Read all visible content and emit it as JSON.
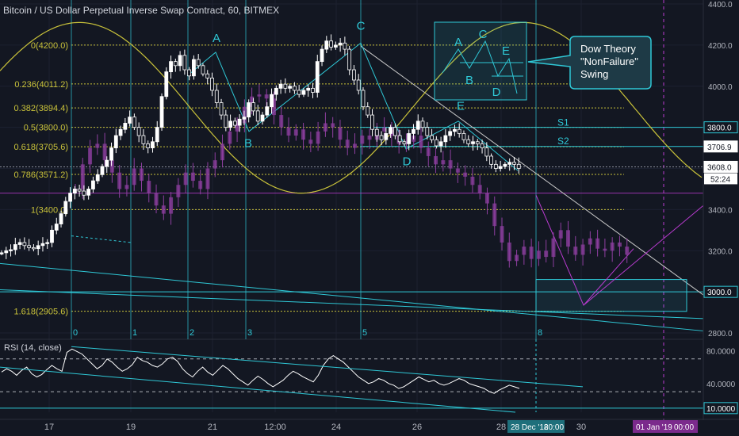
{
  "header": {
    "title": "Bitcoin / US Dollar Perpetual Inverse Swap Contract, 60, BITMEX"
  },
  "colors": {
    "background": "#131722",
    "candle": "#ffffff",
    "ghost_candle": "#8e3fa0",
    "fib": "#c9c23a",
    "cyan": "#2fc8d6",
    "purple": "#b93bd0",
    "trend": "#c8c8c8",
    "wave": "#2fc8d6",
    "grid": "#1c2130",
    "axis_text": "#b2b5be"
  },
  "chart_data": [
    {
      "type": "line",
      "title": "Bitcoin / US Dollar Perpetual Inverse Swap Contract, 60, BITMEX",
      "ylim": [
        2750,
        4400
      ],
      "y_ticks": [
        2800,
        3000,
        3200,
        3400,
        3600,
        3800,
        4000,
        4200,
        4400
      ],
      "y_tick_labels": [
        "2800.0",
        "3000.0",
        "3200.0",
        "3400.0",
        "3600.0",
        "3800.0",
        "4000.0",
        "4200.0",
        "4400.0"
      ],
      "x_tick_labels": [
        "17",
        "19",
        "21",
        "12:00",
        "24",
        "26",
        "28",
        "30"
      ],
      "price_badges": [
        {
          "value": 3800,
          "label": "3800.0",
          "style": "outline"
        },
        {
          "value": 3706.9,
          "label": "3706.9",
          "style": "white"
        },
        {
          "value": 3608.0,
          "label": "3608.0",
          "style": "white"
        },
        {
          "value": 3000,
          "label": "3000.0",
          "style": "outline"
        }
      ],
      "countdown": "52:24",
      "fib_levels": [
        {
          "ratio_label": "0(4200.0)",
          "value": 4200.0
        },
        {
          "ratio_label": "0.236(4011.2)",
          "value": 4011.2
        },
        {
          "ratio_label": "0.382(3894.4)",
          "value": 3894.4
        },
        {
          "ratio_label": "0.5(3800.0)",
          "value": 3800.0
        },
        {
          "ratio_label": "0.618(3705.6)",
          "value": 3705.6
        },
        {
          "ratio_label": "0.786(3571.2)",
          "value": 3571.2
        },
        {
          "ratio_label": "1(3400.0)",
          "value": 3400.0
        },
        {
          "ratio_label": "1.618(2905.6)",
          "value": 2905.6
        }
      ],
      "series": [
        {
          "name": "",
          "values": [
            3190,
            3200,
            3205,
            3230,
            3240,
            3225,
            3215,
            3210,
            3225,
            3235,
            3240,
            3300,
            3330,
            3380,
            3440,
            3480,
            3500,
            3490,
            3470,
            3500,
            3540,
            3570,
            3610,
            3640,
            3700,
            3760,
            3790,
            3820,
            3850,
            3800,
            3760,
            3720,
            3700,
            3730,
            3800,
            3950,
            4070,
            4120,
            4100,
            4150,
            4080,
            4050,
            4130,
            4100,
            4060,
            4040,
            3980,
            3920,
            3860,
            3800,
            3830,
            3810,
            3840,
            3850,
            3920,
            3880,
            3830,
            3860,
            3900,
            3960,
            3990,
            4010,
            3990,
            4000,
            3980,
            3960,
            3980,
            3990,
            3970,
            4120,
            4180,
            4220,
            4190,
            4200,
            4210,
            4180,
            4080,
            4030,
            3980,
            3900,
            3860,
            3790,
            3760,
            3740,
            3770,
            3800,
            3760,
            3730,
            3720,
            3770,
            3790,
            3830,
            3800,
            3760,
            3740,
            3710,
            3730,
            3760,
            3780,
            3790,
            3770,
            3740,
            3720,
            3730,
            3720,
            3700,
            3660,
            3620,
            3600,
            3610,
            3620,
            3630,
            3620,
            3600
          ]
        },
        {
          "name": "",
          "values": [
            3500,
            3620,
            3700,
            3720,
            3640,
            3580,
            3500,
            3520,
            3600,
            3540,
            3480,
            3420,
            3380,
            3460,
            3520,
            3580,
            3540,
            3500,
            3600,
            3640,
            3720,
            3780,
            3820,
            3900,
            3950,
            3960,
            3940,
            3860,
            3800,
            3760,
            3790,
            3740,
            3720,
            3780,
            3820,
            3800,
            3740,
            3700,
            3720,
            3760,
            3740,
            3780,
            3800,
            3760,
            3720,
            3730,
            3760,
            3700,
            3660,
            3620,
            3640,
            3600,
            3580,
            3560,
            3520,
            3480,
            3430,
            3320,
            3240,
            3150,
            3180,
            3220,
            3160,
            3200,
            3170,
            3260,
            3300,
            3220,
            3180,
            3230,
            3260,
            3210,
            3200,
            3240,
            3220,
            3180
          ]
        }
      ],
      "annotations": {
        "wave_labels": [
          "A",
          "B",
          "C",
          "D",
          "E"
        ],
        "support_labels": [
          "S1",
          "S2"
        ],
        "callout": "Dow Theory \"NonFailure\" Swing",
        "inset_labels": [
          "A",
          "B",
          "C",
          "D",
          "E"
        ],
        "time_labels": [
          "0",
          "1",
          "2",
          "3",
          "5",
          "8"
        ],
        "date_badges": [
          "28 Dec '18",
          "20:00",
          "01 Jan '19",
          "00:00"
        ]
      }
    },
    {
      "type": "line",
      "title": "RSI (14, close)",
      "ylim": [
        5,
        92
      ],
      "y_tick_labels": [
        "80.0000",
        "40.0000",
        "10.0000"
      ],
      "y_ticks": [
        80,
        40,
        10
      ],
      "reference_lines": [
        70,
        30
      ],
      "series": [
        {
          "name": "",
          "values": [
            54,
            58,
            55,
            50,
            56,
            60,
            52,
            48,
            51,
            57,
            62,
            58,
            55,
            78,
            82,
            79,
            76,
            70,
            64,
            58,
            62,
            70,
            66,
            60,
            55,
            58,
            63,
            72,
            68,
            66,
            62,
            60,
            64,
            70,
            72,
            67,
            58,
            52,
            48,
            55,
            60,
            54,
            50,
            56,
            62,
            58,
            52,
            46,
            42,
            38,
            44,
            49,
            45,
            40,
            36,
            40,
            44,
            50,
            55,
            52,
            48,
            45,
            42,
            50,
            62,
            70,
            74,
            70,
            66,
            60,
            54,
            48,
            44,
            40,
            42,
            46,
            44,
            40,
            38,
            34,
            36,
            40,
            44,
            48,
            45,
            42,
            44,
            40,
            38,
            40,
            43,
            46,
            44,
            40,
            38,
            36,
            34,
            30,
            28,
            32,
            35,
            38,
            36,
            34
          ]
        }
      ]
    }
  ]
}
